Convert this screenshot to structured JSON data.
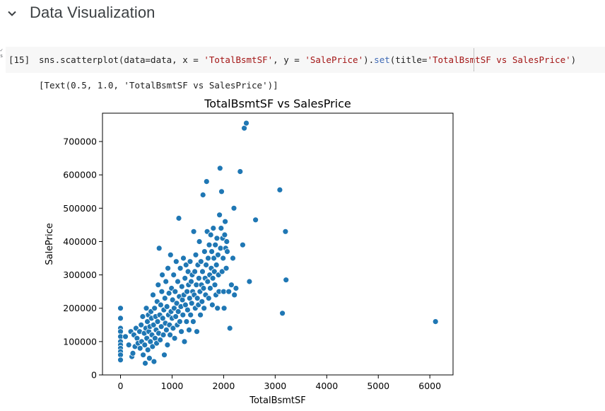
{
  "section": {
    "title": "Data Visualization",
    "collapse_icon": "chevron-down-icon"
  },
  "cell": {
    "execution_count": "[15]",
    "code_tokens": [
      {
        "t": "sns.scatterplot",
        "c": "tok-kw"
      },
      {
        "t": "(data=data, x = ",
        "c": "tok-kw"
      },
      {
        "t": "'TotalBsmtSF'",
        "c": "tok-str"
      },
      {
        "t": ", y = ",
        "c": "tok-kw"
      },
      {
        "t": "'SalePrice'",
        "c": "tok-str"
      },
      {
        "t": ").",
        "c": "tok-kw"
      },
      {
        "t": "set",
        "c": "tok-fn"
      },
      {
        "t": "(title=",
        "c": "tok-kw"
      },
      {
        "t": "'TotalBsmtSF vs SalesPrice'",
        "c": "tok-str"
      },
      {
        "t": ")",
        "c": "tok-kw"
      }
    ],
    "output_text": "[Text(0.5, 1.0, 'TotalBsmtSF vs SalesPrice')]"
  },
  "chart_data": {
    "type": "scatter",
    "title": "TotalBsmtSF vs SalesPrice",
    "xlabel": "TotalBsmtSF",
    "ylabel": "SalePrice",
    "xlim": [
      -350,
      6450
    ],
    "ylim": [
      0,
      785000
    ],
    "xticks": [
      0,
      1000,
      2000,
      3000,
      4000,
      5000,
      6000
    ],
    "yticks": [
      0,
      100000,
      200000,
      300000,
      400000,
      500000,
      600000,
      700000
    ],
    "grid": false,
    "marker_color": "#1f77b4",
    "points": [
      [
        0,
        200000
      ],
      [
        0,
        170000
      ],
      [
        0,
        140000
      ],
      [
        0,
        130000
      ],
      [
        0,
        115000
      ],
      [
        0,
        100000
      ],
      [
        0,
        90000
      ],
      [
        0,
        80000
      ],
      [
        0,
        70000
      ],
      [
        0,
        60000
      ],
      [
        0,
        45000
      ],
      [
        95,
        115000
      ],
      [
        160,
        90000
      ],
      [
        200,
        130000
      ],
      [
        220,
        55000
      ],
      [
        240,
        65000
      ],
      [
        260,
        120000
      ],
      [
        280,
        85000
      ],
      [
        300,
        140000
      ],
      [
        320,
        110000
      ],
      [
        340,
        95000
      ],
      [
        370,
        130000
      ],
      [
        380,
        80000
      ],
      [
        400,
        150000
      ],
      [
        410,
        100000
      ],
      [
        430,
        175000
      ],
      [
        440,
        60000
      ],
      [
        460,
        125000
      ],
      [
        470,
        90000
      ],
      [
        480,
        35000
      ],
      [
        490,
        140000
      ],
      [
        500,
        200000
      ],
      [
        510,
        110000
      ],
      [
        520,
        160000
      ],
      [
        530,
        75000
      ],
      [
        540,
        180000
      ],
      [
        550,
        130000
      ],
      [
        560,
        50000
      ],
      [
        570,
        145000
      ],
      [
        580,
        100000
      ],
      [
        590,
        190000
      ],
      [
        600,
        170000
      ],
      [
        610,
        120000
      ],
      [
        620,
        85000
      ],
      [
        630,
        240000
      ],
      [
        640,
        150000
      ],
      [
        650,
        40000
      ],
      [
        660,
        200000
      ],
      [
        670,
        110000
      ],
      [
        680,
        175000
      ],
      [
        690,
        135000
      ],
      [
        700,
        95000
      ],
      [
        710,
        220000
      ],
      [
        720,
        160000
      ],
      [
        730,
        270000
      ],
      [
        740,
        125000
      ],
      [
        750,
        380000
      ],
      [
        760,
        180000
      ],
      [
        770,
        105000
      ],
      [
        780,
        210000
      ],
      [
        790,
        145000
      ],
      [
        800,
        250000
      ],
      [
        810,
        300000
      ],
      [
        820,
        170000
      ],
      [
        830,
        120000
      ],
      [
        840,
        195000
      ],
      [
        850,
        60000
      ],
      [
        860,
        230000
      ],
      [
        870,
        155000
      ],
      [
        880,
        280000
      ],
      [
        890,
        135000
      ],
      [
        900,
        205000
      ],
      [
        910,
        90000
      ],
      [
        920,
        320000
      ],
      [
        930,
        180000
      ],
      [
        940,
        245000
      ],
      [
        950,
        150000
      ],
      [
        960,
        120000
      ],
      [
        970,
        360000
      ],
      [
        980,
        190000
      ],
      [
        990,
        260000
      ],
      [
        1000,
        170000
      ],
      [
        1010,
        225000
      ],
      [
        1020,
        140000
      ],
      [
        1030,
        300000
      ],
      [
        1040,
        200000
      ],
      [
        1050,
        110000
      ],
      [
        1060,
        250000
      ],
      [
        1070,
        175000
      ],
      [
        1080,
        340000
      ],
      [
        1090,
        215000
      ],
      [
        1100,
        150000
      ],
      [
        1110,
        280000
      ],
      [
        1120,
        190000
      ],
      [
        1130,
        470000
      ],
      [
        1140,
        235000
      ],
      [
        1150,
        160000
      ],
      [
        1160,
        320000
      ],
      [
        1170,
        205000
      ],
      [
        1180,
        130000
      ],
      [
        1190,
        265000
      ],
      [
        1200,
        225000
      ],
      [
        1210,
        180000
      ],
      [
        1220,
        350000
      ],
      [
        1230,
        240000
      ],
      [
        1240,
        100000
      ],
      [
        1250,
        290000
      ],
      [
        1260,
        210000
      ],
      [
        1270,
        330000
      ],
      [
        1280,
        160000
      ],
      [
        1290,
        250000
      ],
      [
        1300,
        195000
      ],
      [
        1310,
        310000
      ],
      [
        1320,
        270000
      ],
      [
        1330,
        135000
      ],
      [
        1340,
        230000
      ],
      [
        1350,
        340000
      ],
      [
        1360,
        180000
      ],
      [
        1370,
        280000
      ],
      [
        1380,
        215000
      ],
      [
        1390,
        300000
      ],
      [
        1400,
        250000
      ],
      [
        1410,
        160000
      ],
      [
        1420,
        430000
      ],
      [
        1430,
        240000
      ],
      [
        1440,
        310000
      ],
      [
        1450,
        200000
      ],
      [
        1460,
        360000
      ],
      [
        1470,
        270000
      ],
      [
        1480,
        130000
      ],
      [
        1490,
        230000
      ],
      [
        1500,
        330000
      ],
      [
        1510,
        210000
      ],
      [
        1520,
        290000
      ],
      [
        1530,
        400000
      ],
      [
        1540,
        250000
      ],
      [
        1550,
        180000
      ],
      [
        1560,
        340000
      ],
      [
        1570,
        270000
      ],
      [
        1580,
        220000
      ],
      [
        1590,
        310000
      ],
      [
        1600,
        540000
      ],
      [
        1610,
        260000
      ],
      [
        1620,
        200000
      ],
      [
        1630,
        370000
      ],
      [
        1640,
        290000
      ],
      [
        1650,
        240000
      ],
      [
        1660,
        330000
      ],
      [
        1670,
        580000
      ],
      [
        1680,
        430000
      ],
      [
        1690,
        280000
      ],
      [
        1700,
        350000
      ],
      [
        1710,
        230000
      ],
      [
        1720,
        390000
      ],
      [
        1730,
        300000
      ],
      [
        1740,
        260000
      ],
      [
        1750,
        420000
      ],
      [
        1760,
        320000
      ],
      [
        1770,
        370000
      ],
      [
        1780,
        210000
      ],
      [
        1790,
        290000
      ],
      [
        1800,
        440000
      ],
      [
        1810,
        350000
      ],
      [
        1820,
        310000
      ],
      [
        1830,
        270000
      ],
      [
        1840,
        390000
      ],
      [
        1850,
        240000
      ],
      [
        1860,
        330000
      ],
      [
        1870,
        410000
      ],
      [
        1880,
        200000
      ],
      [
        1890,
        360000
      ],
      [
        1900,
        300000
      ],
      [
        1910,
        250000
      ],
      [
        1920,
        480000
      ],
      [
        1930,
        620000
      ],
      [
        1940,
        380000
      ],
      [
        1950,
        440000
      ],
      [
        1960,
        550000
      ],
      [
        1970,
        310000
      ],
      [
        1980,
        410000
      ],
      [
        1990,
        350000
      ],
      [
        2000,
        250000
      ],
      [
        2010,
        200000
      ],
      [
        2020,
        420000
      ],
      [
        2030,
        460000
      ],
      [
        2040,
        380000
      ],
      [
        2050,
        320000
      ],
      [
        2060,
        400000
      ],
      [
        2070,
        370000
      ],
      [
        2100,
        250000
      ],
      [
        2120,
        140000
      ],
      [
        2150,
        270000
      ],
      [
        2180,
        350000
      ],
      [
        2200,
        500000
      ],
      [
        2210,
        240000
      ],
      [
        2240,
        260000
      ],
      [
        2320,
        610000
      ],
      [
        2370,
        390000
      ],
      [
        2400,
        740000
      ],
      [
        2440,
        755000
      ],
      [
        2500,
        280000
      ],
      [
        2620,
        465000
      ],
      [
        3090,
        555000
      ],
      [
        3140,
        185000
      ],
      [
        3200,
        430000
      ],
      [
        3210,
        285000
      ],
      [
        6110,
        160000
      ]
    ]
  }
}
